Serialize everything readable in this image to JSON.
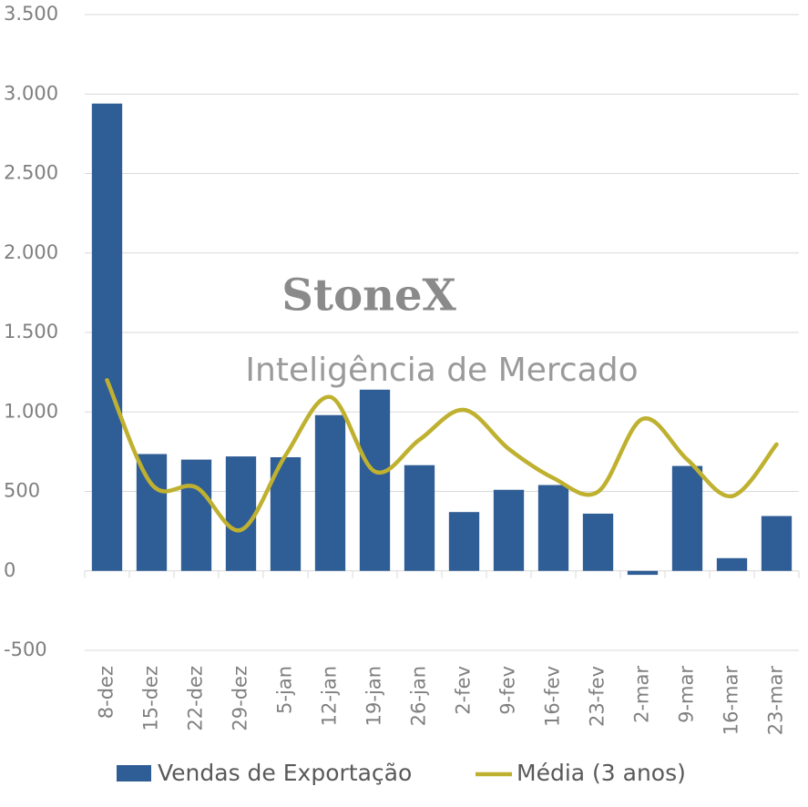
{
  "chart_data": {
    "type": "bar",
    "categories": [
      "8-dez",
      "15-dez",
      "22-dez",
      "29-dez",
      "5-jan",
      "12-jan",
      "19-jan",
      "26-jan",
      "2-fev",
      "9-fev",
      "16-fev",
      "23-fev",
      "2-mar",
      "9-mar",
      "16-mar",
      "23-mar"
    ],
    "series": [
      {
        "name": "Vendas de Exportação",
        "type": "bar",
        "color": "#2f5d95",
        "values": [
          2940,
          735,
          700,
          720,
          715,
          980,
          1140,
          665,
          370,
          510,
          540,
          360,
          -25,
          660,
          80,
          345
        ]
      },
      {
        "name": "Média (3 anos)",
        "type": "line",
        "color": "#bfb12f",
        "values": [
          1200,
          545,
          525,
          257,
          727,
          1094,
          625,
          825,
          1013,
          767,
          584,
          498,
          956,
          700,
          470,
          796
        ]
      }
    ],
    "ylim": [
      -500,
      3500
    ],
    "yticks": [
      -500,
      0,
      500,
      {
        "value": 1000,
        "label": "1.000"
      },
      {
        "value": 1500,
        "label": "1.500"
      },
      {
        "value": 2000,
        "label": "2.000"
      },
      {
        "value": 2500,
        "label": "2.500"
      },
      {
        "value": 3000,
        "label": "3.000"
      },
      {
        "value": 3500,
        "label": "3.500"
      }
    ],
    "grid": true,
    "legend": "bottom",
    "watermark": {
      "brand": "StoneX",
      "subtitle": "Inteligência de Mercado"
    }
  }
}
